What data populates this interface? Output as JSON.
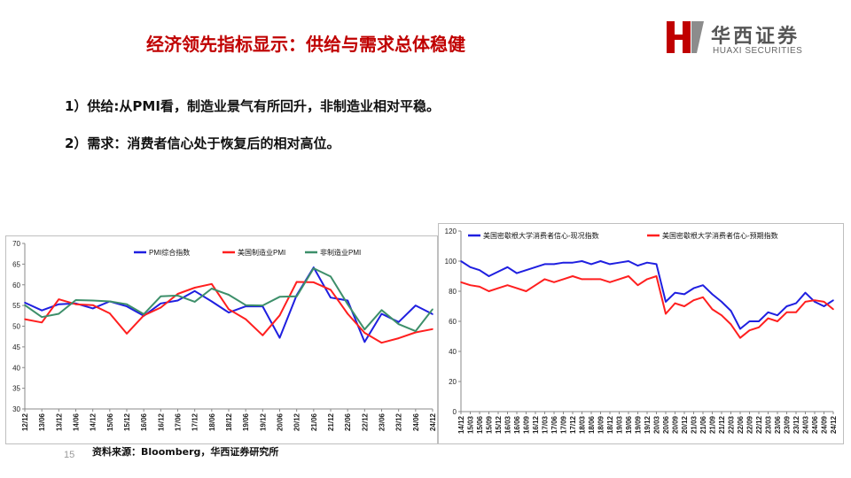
{
  "title": "经济领先指标显示：供给与需求总体稳健",
  "logo": {
    "cn": "华西证券",
    "en": "HUAXI SECURITIES",
    "colors": {
      "primary": "#c00000",
      "secondary": "#8c8c8c"
    }
  },
  "bullets": [
    "1）供给:从PMI看，制造业景气有所回升，非制造业相对平稳。",
    "2）需求：消费者信心处于恢复后的相对高位。"
  ],
  "footer": {
    "source": "资料来源：Bloomberg，华西证券研究所",
    "page": "15"
  },
  "chart_data": [
    {
      "type": "line",
      "title": "",
      "xlabel": "",
      "ylabel": "",
      "ylim": [
        30,
        70
      ],
      "yticks": [
        30,
        35,
        40,
        45,
        50,
        55,
        60,
        65,
        70
      ],
      "x": [
        "12/12",
        "13/06",
        "13/12",
        "14/06",
        "14/12",
        "15/06",
        "15/12",
        "16/06",
        "16/12",
        "17/06",
        "17/12",
        "18/06",
        "18/12",
        "19/06",
        "19/12",
        "20/06",
        "20/12",
        "21/06",
        "21/12",
        "22/06",
        "22/12",
        "23/06",
        "23/12",
        "24/06",
        "24/12"
      ],
      "legend_position": "top",
      "series": [
        {
          "name": "PMI综合指数",
          "color": "#1f1fe0",
          "values": [
            55.7,
            53.8,
            55.3,
            55.5,
            54.3,
            56.0,
            54.8,
            52.5,
            55.5,
            56.2,
            58.5,
            56.0,
            53.3,
            54.8,
            54.8,
            47.2,
            57.5,
            64.2,
            56.9,
            56.2,
            46.2,
            53.0,
            51.0,
            55.0,
            52.9
          ]
        },
        {
          "name": "美国制造业PMI",
          "color": "#ff1f1f",
          "values": [
            51.7,
            50.9,
            56.5,
            55.3,
            55.1,
            53.1,
            48.2,
            52.6,
            54.5,
            57.8,
            59.3,
            60.2,
            54.1,
            51.7,
            47.8,
            52.6,
            60.7,
            60.6,
            58.8,
            53.0,
            48.4,
            46.0,
            47.1,
            48.5,
            49.3
          ]
        },
        {
          "name": "非制造业PMI",
          "color": "#3d8f6a",
          "values": [
            55.1,
            52.2,
            53.0,
            56.3,
            56.2,
            56.0,
            55.3,
            52.9,
            57.2,
            57.4,
            55.9,
            59.1,
            57.6,
            55.1,
            55.0,
            57.1,
            57.2,
            64.0,
            62.0,
            55.3,
            49.2,
            53.9,
            50.5,
            48.8,
            54.1
          ]
        }
      ]
    },
    {
      "type": "line",
      "title": "",
      "xlabel": "",
      "ylabel": "",
      "ylim": [
        0,
        120
      ],
      "yticks": [
        0,
        20,
        40,
        60,
        80,
        100,
        120
      ],
      "x": [
        "14/12",
        "15/03",
        "15/06",
        "15/09",
        "15/12",
        "16/03",
        "16/06",
        "16/09",
        "16/12",
        "17/03",
        "17/06",
        "17/09",
        "17/12",
        "18/03",
        "18/06",
        "18/09",
        "18/12",
        "19/03",
        "19/06",
        "19/09",
        "19/12",
        "20/03",
        "20/06",
        "20/09",
        "20/12",
        "21/03",
        "21/06",
        "21/09",
        "21/12",
        "22/03",
        "22/06",
        "22/09",
        "22/12",
        "23/03",
        "23/06",
        "23/09",
        "23/12",
        "24/03",
        "24/06",
        "24/09",
        "24/12"
      ],
      "legend_position": "top",
      "series": [
        {
          "name": "美国密歇根大学消费者信心-现况指数",
          "color": "#1f1fe0",
          "values": [
            100,
            96,
            94,
            90,
            93,
            96,
            92,
            94,
            96,
            98,
            98,
            99,
            99,
            100,
            98,
            100,
            98,
            99,
            100,
            97,
            99,
            98,
            73,
            79,
            78,
            82,
            84,
            78,
            73,
            67,
            55,
            60,
            60,
            66,
            64,
            70,
            72,
            79,
            73,
            70,
            74
          ]
        },
        {
          "name": "美国密歇根大学消费者信心-预期指数",
          "color": "#ff1f1f",
          "values": [
            86,
            84,
            83,
            80,
            82,
            84,
            82,
            80,
            84,
            88,
            86,
            88,
            90,
            88,
            88,
            88,
            86,
            88,
            90,
            84,
            88,
            90,
            65,
            72,
            70,
            74,
            76,
            68,
            64,
            58,
            49,
            54,
            56,
            62,
            60,
            66,
            66,
            73,
            74,
            73,
            68
          ]
        }
      ]
    }
  ]
}
